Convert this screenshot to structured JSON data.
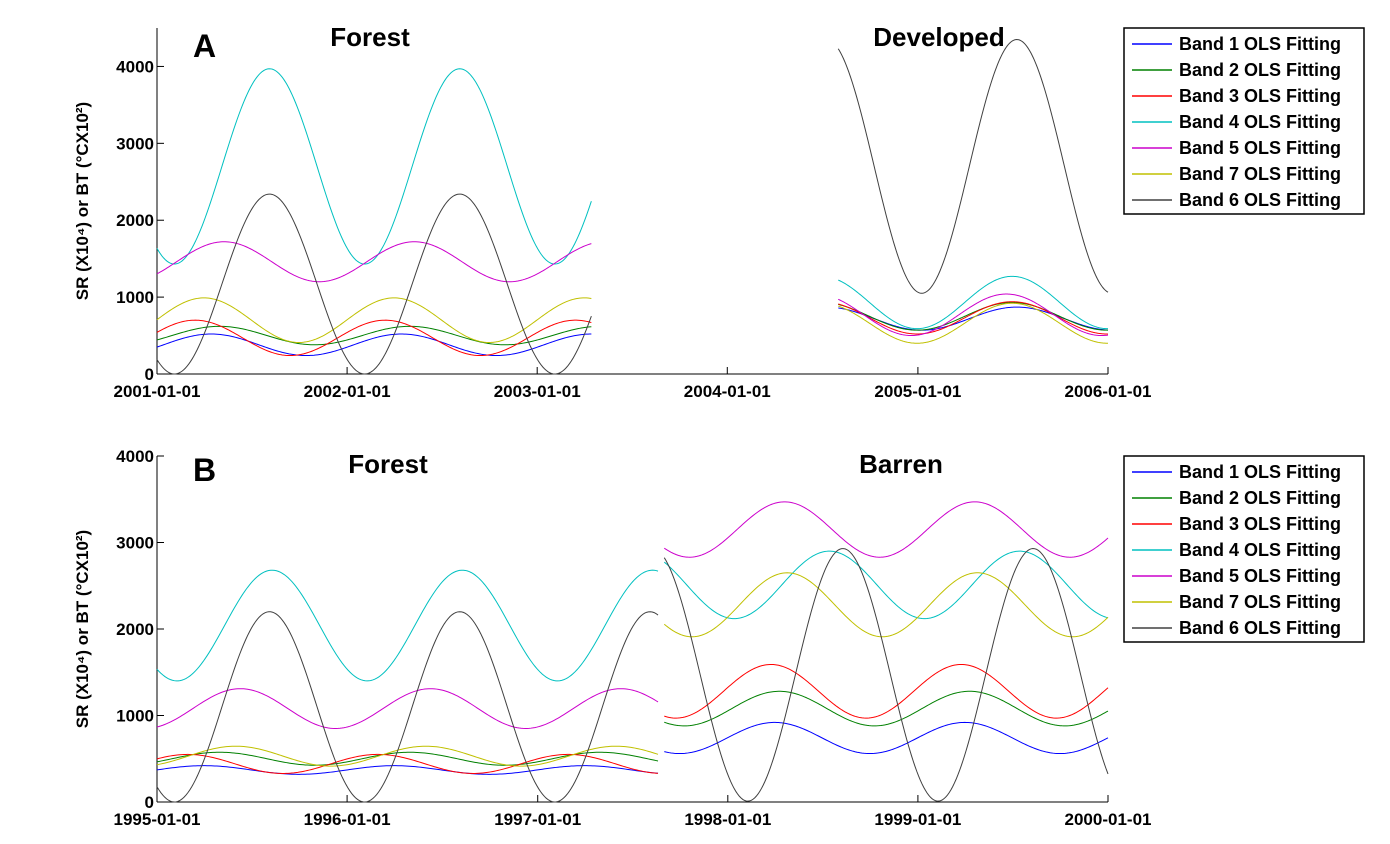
{
  "chart_data": [
    {
      "type": "line",
      "panel_label": "A",
      "ylabel": "SR (X10⁴) or BT (°CX10²)",
      "ylim": [
        0,
        4500
      ],
      "yticks": [
        "0",
        "1000",
        "2000",
        "3000",
        "4000"
      ],
      "xlim": [
        "2001-01-01",
        "2006-01-01"
      ],
      "xticks": [
        "2001-01-01",
        "2002-01-01",
        "2003-01-01",
        "2004-01-01",
        "2005-01-01",
        "2006-01-01"
      ],
      "grid": false,
      "legend_position": "top-right outside",
      "segments": [
        {
          "label": "Forest",
          "x_range": [
            "2001-01-01",
            "2003-04-15"
          ],
          "series": [
            {
              "name": "Band 1 OLS Fitting",
              "color": "#0000ff",
              "mean": 380,
              "amp": 140,
              "peak": "2001-04-15"
            },
            {
              "name": "Band 2 OLS Fitting",
              "color": "#008000",
              "mean": 500,
              "amp": 120,
              "peak": "2001-05-01"
            },
            {
              "name": "Band 3 OLS Fitting",
              "color": "#ff0000",
              "mean": 470,
              "amp": 230,
              "peak": "2001-03-15"
            },
            {
              "name": "Band 4 OLS Fitting",
              "color": "#00c0c0",
              "mean": 2700,
              "amp": 1270,
              "peak": "2001-08-05"
            },
            {
              "name": "Band 5 OLS Fitting",
              "color": "#cc00cc",
              "mean": 1460,
              "amp": 260,
              "peak": "2001-05-10"
            },
            {
              "name": "Band 7 OLS Fitting",
              "color": "#c0c000",
              "mean": 700,
              "amp": 290,
              "peak": "2001-04-01"
            },
            {
              "name": "Band 6 OLS Fitting",
              "color": "#404040",
              "mean": 1170,
              "amp": 1170,
              "peak": "2001-08-05"
            }
          ]
        },
        {
          "label": "Developed",
          "x_range": [
            "2004-08-01",
            "2006-01-01"
          ],
          "series": [
            {
              "name": "Band 1 OLS Fitting",
              "color": "#0000ff",
              "mean": 720,
              "amp": 150,
              "peak": "2005-07-10"
            },
            {
              "name": "Band 2 OLS Fitting",
              "color": "#008000",
              "mean": 750,
              "amp": 180,
              "peak": "2005-07-01"
            },
            {
              "name": "Band 3 OLS Fitting",
              "color": "#ff0000",
              "mean": 730,
              "amp": 210,
              "peak": "2005-07-01"
            },
            {
              "name": "Band 4 OLS Fitting",
              "color": "#00c0c0",
              "mean": 930,
              "amp": 340,
              "peak": "2005-07-01"
            },
            {
              "name": "Band 5 OLS Fitting",
              "color": "#cc00cc",
              "mean": 770,
              "amp": 270,
              "peak": "2005-06-20"
            },
            {
              "name": "Band 7 OLS Fitting",
              "color": "#c0c000",
              "mean": 660,
              "amp": 260,
              "peak": "2005-07-01"
            },
            {
              "name": "Band 6 OLS Fitting",
              "color": "#404040",
              "mean": 2700,
              "amp": 1650,
              "peak": "2005-07-10"
            }
          ]
        }
      ]
    },
    {
      "type": "line",
      "panel_label": "B",
      "ylabel": "SR (X10⁴) or BT (°CX10²)",
      "ylim": [
        0,
        4000
      ],
      "yticks": [
        "0",
        "1000",
        "2000",
        "3000",
        "4000"
      ],
      "xlim": [
        "1995-01-01",
        "2000-01-01"
      ],
      "xticks": [
        "1995-01-01",
        "1996-01-01",
        "1997-01-01",
        "1998-01-01",
        "1999-01-01",
        "2000-01-01"
      ],
      "grid": false,
      "legend_position": "top-right outside",
      "segments": [
        {
          "label": "Forest",
          "x_range": [
            "1995-01-01",
            "1997-08-20"
          ],
          "series": [
            {
              "name": "Band 1 OLS Fitting",
              "color": "#0000ff",
              "mean": 370,
              "amp": 50,
              "peak": "1995-04-01"
            },
            {
              "name": "Band 2 OLS Fitting",
              "color": "#008000",
              "mean": 500,
              "amp": 75,
              "peak": "1995-05-01"
            },
            {
              "name": "Band 3 OLS Fitting",
              "color": "#ff0000",
              "mean": 440,
              "amp": 110,
              "peak": "1995-03-01"
            },
            {
              "name": "Band 4 OLS Fitting",
              "color": "#00c0c0",
              "mean": 2040,
              "amp": 640,
              "peak": "1995-08-10"
            },
            {
              "name": "Band 5 OLS Fitting",
              "color": "#cc00cc",
              "mean": 1080,
              "amp": 230,
              "peak": "1995-06-10"
            },
            {
              "name": "Band 7 OLS Fitting",
              "color": "#c0c000",
              "mean": 530,
              "amp": 115,
              "peak": "1995-06-01"
            },
            {
              "name": "Band 6 OLS Fitting",
              "color": "#404040",
              "mean": 1100,
              "amp": 1100,
              "peak": "1995-08-05"
            }
          ]
        },
        {
          "label": "Barren",
          "x_range": [
            "1997-09-01",
            "2000-01-01"
          ],
          "series": [
            {
              "name": "Band 1 OLS Fitting",
              "color": "#0000ff",
              "mean": 740,
              "amp": 180,
              "peak": "1998-04-01"
            },
            {
              "name": "Band 2 OLS Fitting",
              "color": "#008000",
              "mean": 1080,
              "amp": 200,
              "peak": "1998-04-10"
            },
            {
              "name": "Band 3 OLS Fitting",
              "color": "#ff0000",
              "mean": 1280,
              "amp": 310,
              "peak": "1998-03-25"
            },
            {
              "name": "Band 4 OLS Fitting",
              "color": "#00c0c0",
              "mean": 2510,
              "amp": 390,
              "peak": "1998-07-15"
            },
            {
              "name": "Band 5 OLS Fitting",
              "color": "#cc00cc",
              "mean": 3150,
              "amp": 320,
              "peak": "1998-04-20"
            },
            {
              "name": "Band 7 OLS Fitting",
              "color": "#c0c000",
              "mean": 2280,
              "amp": 370,
              "peak": "1998-04-25"
            },
            {
              "name": "Band 6 OLS Fitting",
              "color": "#404040",
              "mean": 1470,
              "amp": 1460,
              "peak": "1998-08-10"
            }
          ]
        }
      ]
    }
  ]
}
